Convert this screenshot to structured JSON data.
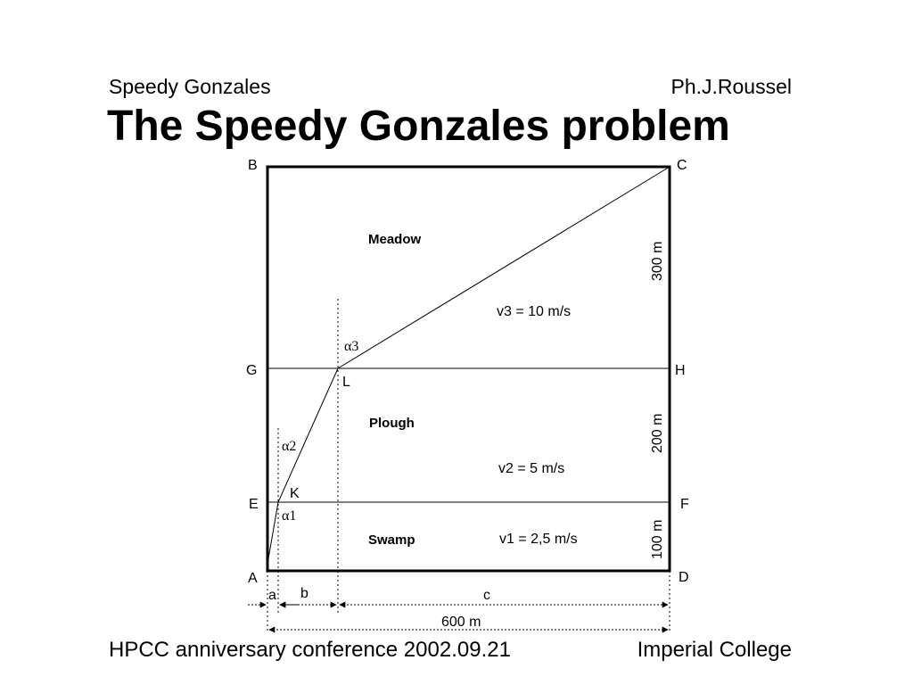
{
  "header": {
    "left": "Speedy Gonzales",
    "right": "Ph.J.Roussel",
    "title": "The Speedy Gonzales problem"
  },
  "footer": {
    "left": "HPCC anniversary conference 2002.09.21",
    "right": "Imperial College"
  },
  "diagram": {
    "regions": {
      "meadow": "Meadow",
      "plough": "Plough",
      "swamp": "Swamp"
    },
    "speeds": {
      "v3": "v3 = 10 m/s",
      "v2": "v2 = 5 m/s",
      "v1": "v1 = 2,5 m/s"
    },
    "points": {
      "A": "A",
      "B": "B",
      "C": "C",
      "D": "D",
      "E": "E",
      "F": "F",
      "G": "G",
      "H": "H",
      "K": "K",
      "L": "L"
    },
    "angles": {
      "alpha1": "α1",
      "alpha2": "α2",
      "alpha3": "α3"
    },
    "distances": {
      "meadow": "300 m",
      "plough": "200 m",
      "swamp": "100 m",
      "total": "600 m"
    },
    "segments": {
      "a": "a",
      "b": "b",
      "c": "c"
    }
  }
}
